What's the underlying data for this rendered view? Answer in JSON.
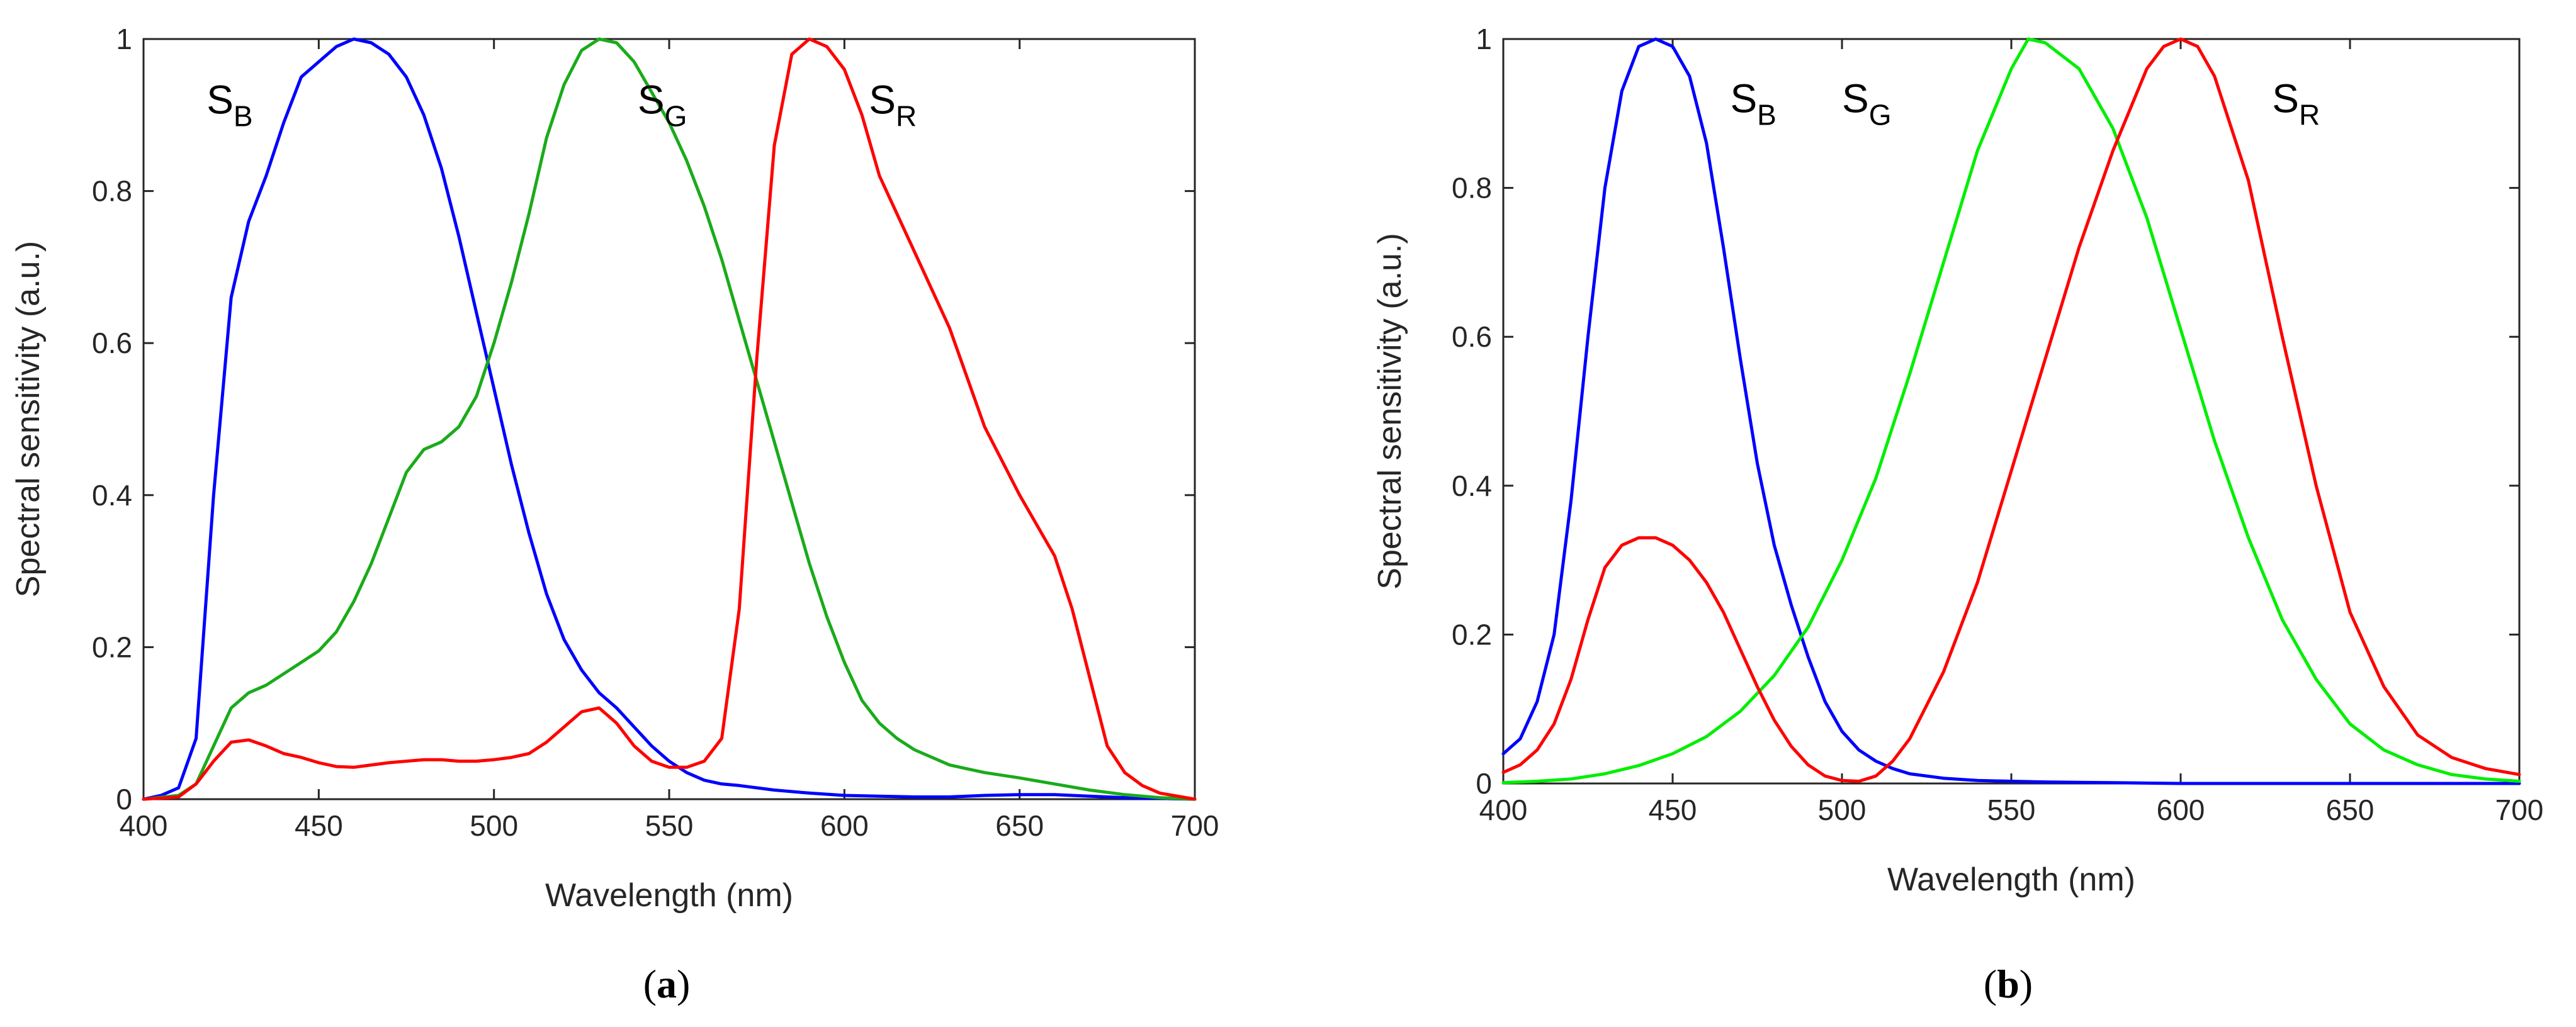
{
  "chart_data": [
    {
      "type": "line",
      "caption_letter": "a",
      "xlabel": "Wavelength (nm)",
      "ylabel": "Spectral sensitivity (a.u.)",
      "xlim": [
        400,
        700
      ],
      "ylim": [
        0,
        1
      ],
      "xticks": [
        400,
        450,
        500,
        550,
        600,
        650,
        700
      ],
      "yticks": [
        0,
        0.2,
        0.4,
        0.6,
        0.8,
        1
      ],
      "ytick_labels": [
        "0",
        "0.2",
        "0.4",
        "0.6",
        "0.8",
        "1"
      ],
      "grid": false,
      "series": [
        {
          "name": "S_B",
          "label_main": "S",
          "label_sub": "B",
          "color": "#0000ff",
          "label_at": [
            418,
            0.92
          ],
          "x": [
            400,
            405,
            410,
            415,
            420,
            425,
            430,
            435,
            440,
            445,
            450,
            455,
            460,
            465,
            470,
            475,
            480,
            485,
            490,
            495,
            500,
            505,
            510,
            515,
            520,
            525,
            530,
            535,
            540,
            545,
            550,
            555,
            560,
            565,
            570,
            580,
            590,
            600,
            610,
            620,
            630,
            640,
            650,
            660,
            670,
            680,
            690,
            700
          ],
          "values": [
            0.0,
            0.005,
            0.015,
            0.08,
            0.4,
            0.66,
            0.76,
            0.82,
            0.89,
            0.95,
            0.97,
            0.99,
            1.0,
            0.995,
            0.98,
            0.95,
            0.9,
            0.83,
            0.74,
            0.64,
            0.54,
            0.44,
            0.35,
            0.27,
            0.21,
            0.17,
            0.14,
            0.12,
            0.095,
            0.07,
            0.05,
            0.035,
            0.025,
            0.02,
            0.018,
            0.012,
            0.008,
            0.005,
            0.004,
            0.003,
            0.003,
            0.005,
            0.006,
            0.006,
            0.004,
            0.002,
            0.001,
            0.0
          ]
        },
        {
          "name": "S_G",
          "label_main": "S",
          "label_sub": "G",
          "color": "#1aab1a",
          "label_at": [
            541,
            0.92
          ],
          "x": [
            400,
            410,
            415,
            420,
            425,
            430,
            435,
            440,
            445,
            450,
            455,
            460,
            465,
            470,
            475,
            480,
            485,
            490,
            495,
            500,
            505,
            510,
            515,
            520,
            525,
            530,
            535,
            540,
            545,
            550,
            555,
            560,
            565,
            570,
            575,
            580,
            585,
            590,
            595,
            600,
            605,
            610,
            615,
            620,
            630,
            640,
            650,
            660,
            670,
            680,
            690,
            700
          ],
          "values": [
            0.0,
            0.005,
            0.02,
            0.07,
            0.12,
            0.14,
            0.15,
            0.165,
            0.18,
            0.195,
            0.22,
            0.26,
            0.31,
            0.37,
            0.43,
            0.46,
            0.47,
            0.49,
            0.53,
            0.6,
            0.68,
            0.77,
            0.87,
            0.94,
            0.985,
            1.0,
            0.995,
            0.97,
            0.93,
            0.89,
            0.84,
            0.78,
            0.71,
            0.63,
            0.55,
            0.47,
            0.39,
            0.31,
            0.24,
            0.18,
            0.13,
            0.1,
            0.08,
            0.065,
            0.045,
            0.035,
            0.028,
            0.02,
            0.012,
            0.006,
            0.002,
            0.0
          ]
        },
        {
          "name": "S_R",
          "label_main": "S",
          "label_sub": "R",
          "color": "#ff0000",
          "label_at": [
            607,
            0.92
          ],
          "x": [
            400,
            410,
            415,
            420,
            425,
            430,
            435,
            440,
            445,
            450,
            455,
            460,
            465,
            470,
            475,
            480,
            485,
            490,
            495,
            500,
            505,
            510,
            515,
            520,
            525,
            530,
            535,
            540,
            545,
            550,
            555,
            560,
            565,
            570,
            575,
            580,
            585,
            590,
            595,
            600,
            605,
            610,
            620,
            630,
            640,
            650,
            660,
            665,
            670,
            675,
            680,
            685,
            690,
            700
          ],
          "values": [
            0.0,
            0.003,
            0.02,
            0.05,
            0.075,
            0.078,
            0.07,
            0.06,
            0.055,
            0.048,
            0.043,
            0.042,
            0.045,
            0.048,
            0.05,
            0.052,
            0.052,
            0.05,
            0.05,
            0.052,
            0.055,
            0.06,
            0.075,
            0.095,
            0.115,
            0.12,
            0.1,
            0.07,
            0.05,
            0.042,
            0.042,
            0.05,
            0.08,
            0.25,
            0.58,
            0.86,
            0.98,
            1.0,
            0.99,
            0.96,
            0.9,
            0.82,
            0.72,
            0.62,
            0.49,
            0.4,
            0.32,
            0.25,
            0.16,
            0.07,
            0.035,
            0.018,
            0.008,
            0.0
          ]
        }
      ]
    },
    {
      "type": "line",
      "caption_letter": "b",
      "xlabel": "Wavelength (nm)",
      "ylabel": "Spectral sensitivity (a.u.)",
      "xlim": [
        400,
        700
      ],
      "ylim": [
        0,
        1
      ],
      "xticks": [
        400,
        450,
        500,
        550,
        600,
        650,
        700
      ],
      "yticks": [
        0,
        0.2,
        0.4,
        0.6,
        0.8,
        1
      ],
      "ytick_labels": [
        "0",
        "0.2",
        "0.4",
        "0.6",
        "0.8",
        "1"
      ],
      "grid": false,
      "series": [
        {
          "name": "S_B",
          "label_main": "S",
          "label_sub": "B",
          "color": "#0000ff",
          "label_at": [
            467,
            0.92
          ],
          "x": [
            400,
            405,
            410,
            415,
            420,
            425,
            430,
            435,
            440,
            445,
            450,
            455,
            460,
            465,
            470,
            475,
            480,
            485,
            490,
            495,
            500,
            505,
            510,
            515,
            520,
            530,
            540,
            550,
            560,
            580,
            600,
            650,
            700
          ],
          "values": [
            0.04,
            0.06,
            0.11,
            0.2,
            0.38,
            0.6,
            0.8,
            0.93,
            0.99,
            1.0,
            0.99,
            0.95,
            0.86,
            0.72,
            0.57,
            0.43,
            0.32,
            0.24,
            0.17,
            0.11,
            0.07,
            0.045,
            0.03,
            0.02,
            0.013,
            0.007,
            0.004,
            0.003,
            0.002,
            0.001,
            0.0,
            0.0,
            0.0
          ]
        },
        {
          "name": "S_G",
          "label_main": "S",
          "label_sub": "G",
          "color": "#00ee00",
          "label_at": [
            500,
            0.92
          ],
          "x": [
            400,
            410,
            420,
            430,
            440,
            450,
            460,
            470,
            480,
            490,
            500,
            510,
            520,
            530,
            540,
            550,
            555,
            560,
            570,
            580,
            590,
            600,
            610,
            620,
            630,
            640,
            650,
            660,
            670,
            680,
            690,
            700
          ],
          "values": [
            0.001,
            0.003,
            0.006,
            0.013,
            0.024,
            0.04,
            0.063,
            0.097,
            0.145,
            0.21,
            0.3,
            0.41,
            0.55,
            0.7,
            0.85,
            0.96,
            1.0,
            0.995,
            0.96,
            0.88,
            0.76,
            0.61,
            0.46,
            0.33,
            0.22,
            0.14,
            0.08,
            0.045,
            0.025,
            0.012,
            0.006,
            0.003
          ]
        },
        {
          "name": "S_R",
          "label_main": "S",
          "label_sub": "R",
          "color": "#ff0000",
          "label_at": [
            627,
            0.92
          ],
          "x": [
            400,
            405,
            410,
            415,
            420,
            425,
            430,
            435,
            440,
            445,
            450,
            455,
            460,
            465,
            470,
            475,
            480,
            485,
            490,
            495,
            500,
            505,
            510,
            515,
            520,
            530,
            540,
            550,
            560,
            570,
            580,
            590,
            595,
            600,
            605,
            610,
            620,
            630,
            640,
            650,
            660,
            670,
            680,
            690,
            700
          ],
          "values": [
            0.015,
            0.025,
            0.045,
            0.08,
            0.14,
            0.22,
            0.29,
            0.32,
            0.33,
            0.33,
            0.32,
            0.3,
            0.27,
            0.23,
            0.18,
            0.13,
            0.085,
            0.05,
            0.025,
            0.01,
            0.004,
            0.003,
            0.01,
            0.03,
            0.06,
            0.15,
            0.27,
            0.42,
            0.57,
            0.72,
            0.85,
            0.96,
            0.99,
            1.0,
            0.99,
            0.95,
            0.81,
            0.6,
            0.4,
            0.23,
            0.13,
            0.065,
            0.035,
            0.02,
            0.012
          ]
        }
      ]
    }
  ]
}
